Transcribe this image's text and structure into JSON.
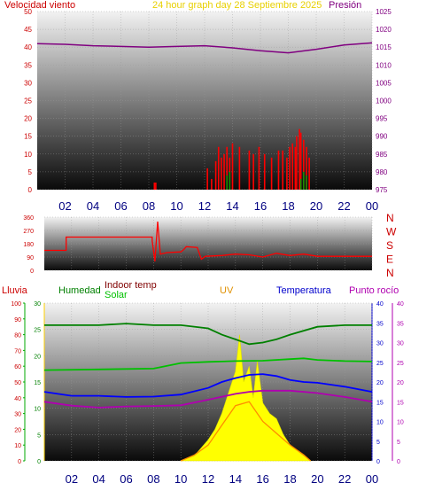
{
  "top_panel": {
    "left_label": "Velocidad viento",
    "title": "24 hour graph day   28 Septiembre 2025",
    "right_label": "Presión",
    "left_ticks": [
      "50",
      "45",
      "40",
      "35",
      "30",
      "25",
      "20",
      "15",
      "10",
      "5",
      "0"
    ],
    "right_ticks": [
      "1025",
      "1020",
      "1015",
      "1010",
      "1005",
      "1000",
      "995",
      "990",
      "985",
      "980",
      "975"
    ],
    "x_ticks": [
      "02",
      "04",
      "06",
      "08",
      "10",
      "12",
      "14",
      "16",
      "18",
      "20",
      "22",
      "00"
    ]
  },
  "mid_panel": {
    "left_ticks": [
      "360",
      "270",
      "180",
      "90",
      "0"
    ],
    "right_labels": [
      "N",
      "W",
      "S",
      "E",
      "N"
    ],
    "x_ticks": [
      "02",
      "04",
      "06",
      "08",
      "10",
      "12",
      "14",
      "16",
      "18",
      "20",
      "22",
      "00"
    ]
  },
  "bottom_panel": {
    "labels": {
      "lluvia": "Lluvia",
      "humedad": "Humedad",
      "indoor": "Indoor temp",
      "solar": "Solar",
      "uv": "UV",
      "temperatura": "Temperatura",
      "rocio": "Punto rocío"
    },
    "left_outer_ticks": [
      "100",
      "90",
      "80",
      "70",
      "60",
      "50",
      "40",
      "30",
      "20",
      "10",
      "0"
    ],
    "left_inner_ticks": [
      "30",
      "25",
      "20",
      "15",
      "10",
      "5",
      "0"
    ],
    "right_inner_ticks": [
      "40",
      "35",
      "30",
      "25",
      "20",
      "15",
      "10",
      "5",
      "0"
    ],
    "right_outer_ticks": [
      "40",
      "35",
      "30",
      "25",
      "20",
      "15",
      "10",
      "5",
      "0"
    ],
    "x_ticks": [
      "02",
      "04",
      "06",
      "08",
      "10",
      "12",
      "14",
      "16",
      "18",
      "20",
      "22",
      "00"
    ]
  },
  "colors": {
    "wind": "#ff0000",
    "gust_green": "#00a000",
    "pressure": "#800080",
    "direction": "#ff0000",
    "humidity": "#008000",
    "indoor": "#00c000",
    "temperature": "#0000ff",
    "dewpoint": "#b000b0",
    "solar": "#ffff00",
    "uv": "#ff8c00",
    "axis_text_red": "#cc0000",
    "x_tick_text": "#000080"
  },
  "chart_data": [
    {
      "type": "line",
      "x_unit": "hour",
      "xlim": [
        0,
        24
      ],
      "series": [
        {
          "name": "Presión",
          "axis": "right",
          "ylim": [
            975,
            1025
          ],
          "x": [
            0,
            2,
            4,
            6,
            8,
            10,
            12,
            14,
            16,
            18,
            20,
            22,
            24
          ],
          "values": [
            1016,
            1015.8,
            1015.4,
            1015.2,
            1015,
            1015.2,
            1015.4,
            1014.8,
            1014,
            1013.4,
            1014.4,
            1015.6,
            1016.2
          ]
        },
        {
          "name": "Velocidad viento",
          "axis": "left",
          "ylim": [
            0,
            50
          ],
          "style": "bars",
          "x": [
            8.4,
            8.5,
            12.2,
            12.5,
            12.8,
            13.0,
            13.2,
            13.4,
            13.6,
            13.8,
            14.0,
            14.5,
            15.2,
            15.5,
            15.9,
            16.3,
            16.8,
            17.3,
            17.6,
            17.9,
            18.1,
            18.3,
            18.5,
            18.6,
            18.8,
            18.9,
            19.1,
            19.3,
            19.5
          ],
          "values": [
            2,
            2,
            6,
            3,
            8,
            12,
            9,
            10,
            12,
            9,
            13,
            12,
            11,
            10,
            12,
            10,
            9,
            11,
            11,
            9,
            12,
            13,
            12,
            15,
            17,
            16,
            14,
            12,
            9
          ]
        },
        {
          "name": "Ráfaga",
          "axis": "left",
          "ylim": [
            0,
            50
          ],
          "style": "bars",
          "x": [
            13.6,
            13.8,
            18.9,
            19.1,
            19.3
          ],
          "values": [
            4,
            5,
            3,
            5,
            4
          ]
        }
      ]
    },
    {
      "type": "line",
      "x_unit": "hour",
      "xlim": [
        0,
        24
      ],
      "ylim": [
        0,
        360
      ],
      "series": [
        {
          "name": "Dirección",
          "style": "step",
          "x": [
            0,
            1.6,
            1.6,
            7.9,
            7.9,
            8.1,
            8.3,
            8.5,
            9.0,
            10.0,
            10.2,
            10.4,
            11.2,
            11.5,
            11.8,
            13.0,
            14.0,
            15.0,
            16.0,
            17.0,
            18.0,
            19.0,
            20.0,
            24.0
          ],
          "values": [
            135,
            135,
            225,
            225,
            200,
            60,
            330,
            110,
            120,
            125,
            140,
            160,
            155,
            75,
            95,
            100,
            110,
            105,
            90,
            115,
            100,
            110,
            95,
            95
          ]
        }
      ]
    },
    {
      "type": "line",
      "x_unit": "hour",
      "xlim": [
        0,
        24
      ],
      "series": [
        {
          "name": "Humedad",
          "axis": "left_outer",
          "ylim": [
            0,
            100
          ],
          "x": [
            0,
            2,
            4,
            6,
            8,
            10,
            12,
            13,
            14,
            15,
            16,
            17,
            18,
            20,
            22,
            24
          ],
          "values": [
            86,
            86,
            86,
            87,
            86,
            86,
            84,
            80,
            77,
            74,
            75,
            77,
            80,
            85,
            86,
            86
          ]
        },
        {
          "name": "Indoor temp",
          "axis": "right_outer",
          "ylim": [
            0,
            40
          ],
          "x": [
            0,
            4,
            8,
            10,
            12,
            14,
            16,
            18,
            19,
            20,
            22,
            24
          ],
          "values": [
            23,
            23.2,
            23.4,
            24.8,
            25.1,
            25.3,
            25.4,
            25.8,
            26,
            25.6,
            25.3,
            25.2
          ]
        },
        {
          "name": "Temperatura",
          "axis": "right_outer",
          "ylim": [
            0,
            40
          ],
          "x": [
            0,
            2,
            4,
            6,
            8,
            10,
            12,
            13,
            14,
            15,
            16,
            17,
            18,
            19,
            20,
            22,
            24
          ],
          "values": [
            17.5,
            16.5,
            16.5,
            16.2,
            16.3,
            16.8,
            18.5,
            20,
            21,
            21.8,
            22,
            21.5,
            20.5,
            20,
            19.8,
            18.8,
            17.5
          ]
        },
        {
          "name": "Punto rocío",
          "axis": "right_outer",
          "ylim": [
            0,
            40
          ],
          "x": [
            0,
            2,
            4,
            6,
            8,
            10,
            12,
            14,
            15,
            16,
            18,
            20,
            22,
            24
          ],
          "values": [
            15,
            14,
            13.5,
            13.8,
            13.9,
            14.1,
            15.5,
            17,
            17.5,
            17.8,
            17.8,
            17.2,
            16.2,
            15
          ]
        },
        {
          "name": "Solar",
          "axis": "left_inner",
          "ylim": [
            0,
            30
          ],
          "style": "area",
          "x": [
            10,
            11,
            12,
            12.5,
            13,
            13.5,
            14,
            14.3,
            14.6,
            15,
            15.3,
            15.6,
            16,
            16.5,
            17,
            17.5,
            18,
            18.5,
            19,
            19.5
          ],
          "values": [
            0,
            1,
            4,
            6,
            9,
            13,
            17,
            24,
            15,
            18,
            12,
            19,
            11,
            9,
            8,
            5,
            3,
            2,
            1,
            0
          ]
        },
        {
          "name": "UV",
          "axis": "right_inner",
          "ylim": [
            0,
            40
          ],
          "x": [
            10,
            11,
            12,
            13,
            14,
            15,
            16,
            17,
            18,
            19,
            19.5
          ],
          "values": [
            0,
            1.5,
            4,
            9,
            14,
            15,
            10,
            7,
            4,
            1.5,
            0
          ]
        }
      ]
    }
  ]
}
